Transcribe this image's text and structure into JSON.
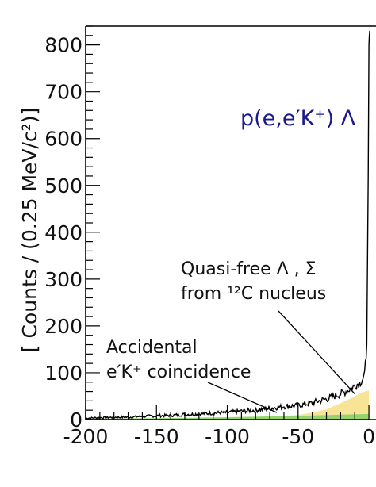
{
  "chart_data": {
    "type": "line",
    "title": "p(e,e′K⁺) Λ",
    "ylabel": "[ Counts / (0.25 MeV/c²)]",
    "xlabel": "",
    "xlim": [
      -200,
      5
    ],
    "ylim": [
      0,
      840
    ],
    "x_ticks": [
      "-200",
      "-150",
      "-100",
      "-50",
      "0"
    ],
    "y_ticks": [
      "0",
      "100",
      "200",
      "300",
      "400",
      "500",
      "600",
      "700",
      "800"
    ],
    "series": [
      {
        "role": "data-histogram",
        "color": "#000000",
        "x": [
          -200,
          -190,
          -180,
          -170,
          -160,
          -150,
          -140,
          -130,
          -120,
          -110,
          -100,
          -90,
          -80,
          -70,
          -60,
          -50,
          -40,
          -30,
          -20,
          -15,
          -10,
          -6,
          -3,
          -1.5,
          -0.5,
          0,
          0.3,
          0.6
        ],
        "y": [
          3,
          4,
          5,
          5,
          7,
          8,
          9,
          11,
          12,
          14,
          15,
          18,
          20,
          24,
          28,
          30,
          36,
          44,
          55,
          62,
          72,
          80,
          95,
          160,
          520,
          800,
          820,
          830
        ]
      },
      {
        "name": "Quasi-free",
        "role": "quasi-free-fill",
        "color": "#f7e38f",
        "x": [
          -200,
          -150,
          -100,
          -80,
          -60,
          -50,
          -40,
          -30,
          -20,
          -15,
          -10,
          -5,
          0
        ],
        "y": [
          0,
          1,
          3,
          5,
          8,
          10,
          15,
          22,
          35,
          42,
          50,
          58,
          62
        ]
      },
      {
        "name": "Accidental",
        "role": "accidental-fill",
        "color": "#8fd36a",
        "x": [
          -200,
          -150,
          -100,
          -50,
          0
        ],
        "y": [
          2,
          3,
          5,
          8,
          12
        ]
      }
    ],
    "annotations": [
      {
        "id": "quasi",
        "lines": [
          "Quasi-free Λ , Σ",
          "from ¹²C nucleus"
        ],
        "arrow_to": [
          -10,
          55
        ]
      },
      {
        "id": "accidental",
        "lines": [
          "Accidental",
          "e′K⁺ coincidence"
        ],
        "arrow_to": [
          -65,
          15
        ]
      }
    ],
    "grid": false,
    "legend": "none"
  }
}
